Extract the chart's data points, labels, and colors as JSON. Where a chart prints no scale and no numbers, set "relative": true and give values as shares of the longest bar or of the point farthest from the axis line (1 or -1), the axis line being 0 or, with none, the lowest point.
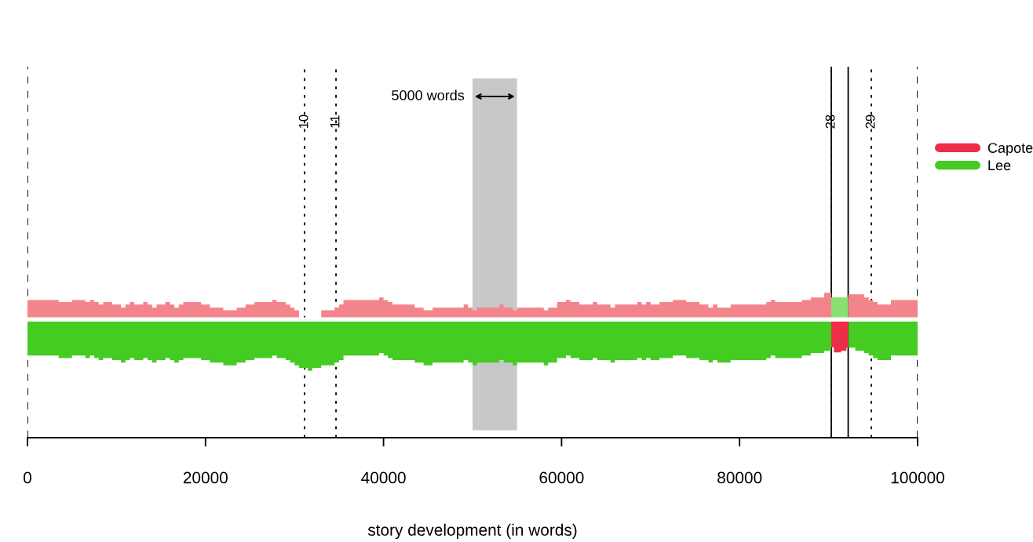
{
  "chart_data": {
    "type": "area",
    "relative": true,
    "xlabel": "story development (in words)",
    "xlim": [
      0,
      100000
    ],
    "xticks": [
      0,
      20000,
      40000,
      60000,
      80000,
      100000
    ],
    "tick_labels": "x",
    "legend": "right",
    "series": [
      {
        "color": "#f4848b",
        "x": [
          0,
          3500,
          3500,
          5000,
          5000,
          6500,
          6500,
          7000,
          7000,
          7500,
          7500,
          8000,
          8000,
          8500,
          8500,
          9500,
          9500,
          10500,
          10500,
          11000,
          11000,
          11500,
          11500,
          12000,
          12000,
          13000,
          13000,
          13500,
          13500,
          14000,
          14000,
          14500,
          14500,
          15500,
          15500,
          16000,
          16000,
          16500,
          16500,
          17000,
          17000,
          17500,
          17500,
          19500,
          19500,
          20500,
          20500,
          22000,
          22000,
          23500,
          23500,
          24500,
          24500,
          25500,
          25500,
          27500,
          27500,
          28000,
          28000,
          29000,
          29000,
          29500,
          29500,
          30000,
          30000,
          30500
        ],
        "values": [
          0.38,
          0.38,
          0.34,
          0.34,
          0.38,
          0.38,
          0.34,
          0.34,
          0.38,
          0.38,
          0.34,
          0.34,
          0.29,
          0.29,
          0.34,
          0.34,
          0.29,
          0.29,
          0.23,
          0.23,
          0.29,
          0.29,
          0.34,
          0.34,
          0.29,
          0.29,
          0.34,
          0.34,
          0.29,
          0.29,
          0.23,
          0.23,
          0.29,
          0.29,
          0.34,
          0.34,
          0.29,
          0.29,
          0.23,
          0.23,
          0.29,
          0.29,
          0.34,
          0.34,
          0.29,
          0.29,
          0.23,
          0.23,
          0.18,
          0.18,
          0.23,
          0.23,
          0.29,
          0.29,
          0.34,
          0.34,
          0.38,
          0.38,
          0.34,
          0.34,
          0.29,
          0.29,
          0.23,
          0.23,
          0.18,
          0.18
        ]
      },
      {
        "color": "#f4848b",
        "x": [
          33000,
          34500,
          34500,
          35000,
          35000,
          35500,
          35500,
          39500,
          39500,
          40000,
          40000,
          40500,
          40500,
          41000,
          41000,
          43500,
          43500,
          44500,
          44500,
          45500,
          45500,
          49000,
          49000,
          49500,
          49500,
          50000,
          50000,
          50500,
          50500,
          53000,
          53000,
          53500,
          53500,
          54500,
          54500,
          55000,
          55000,
          58000,
          58000,
          58500,
          58500,
          59500,
          59500,
          60500,
          60500,
          61000,
          61000,
          62000,
          62000,
          63500,
          63500,
          64000,
          64000,
          65500,
          65500,
          66000,
          66000,
          68500,
          68500,
          69000,
          69000,
          69500,
          69500,
          70000,
          70000,
          71000,
          71000,
          72500,
          72500,
          74000,
          74000,
          75500,
          75500,
          76500,
          76500,
          77000,
          77000,
          77500,
          77500,
          79000,
          79000,
          83000,
          83000,
          83500,
          83500,
          84000,
          84000,
          87000,
          87000,
          88000,
          88000,
          89500,
          89500,
          90300
        ],
        "values": [
          0.18,
          0.18,
          0.23,
          0.23,
          0.29,
          0.29,
          0.38,
          0.38,
          0.43,
          0.43,
          0.38,
          0.38,
          0.34,
          0.34,
          0.29,
          0.29,
          0.23,
          0.23,
          0.18,
          0.18,
          0.23,
          0.23,
          0.29,
          0.29,
          0.23,
          0.23,
          0.18,
          0.18,
          0.23,
          0.23,
          0.29,
          0.29,
          0.23,
          0.23,
          0.18,
          0.18,
          0.23,
          0.23,
          0.18,
          0.18,
          0.23,
          0.23,
          0.34,
          0.34,
          0.38,
          0.38,
          0.34,
          0.34,
          0.29,
          0.29,
          0.34,
          0.34,
          0.29,
          0.29,
          0.23,
          0.23,
          0.29,
          0.29,
          0.34,
          0.34,
          0.29,
          0.29,
          0.34,
          0.34,
          0.29,
          0.29,
          0.34,
          0.34,
          0.38,
          0.38,
          0.34,
          0.34,
          0.29,
          0.29,
          0.23,
          0.23,
          0.29,
          0.29,
          0.23,
          0.23,
          0.29,
          0.29,
          0.34,
          0.34,
          0.38,
          0.38,
          0.34,
          0.34,
          0.38,
          0.38,
          0.43,
          0.43,
          0.52,
          0.52
        ]
      },
      {
        "color": "#f4848b",
        "x": [
          92200,
          94000,
          94000,
          94500,
          94500,
          95000,
          95000,
          95500,
          95500,
          97000,
          97000,
          100000
        ],
        "values": [
          0.49,
          0.49,
          0.43,
          0.43,
          0.38,
          0.38,
          0.34,
          0.34,
          0.29,
          0.29,
          0.38,
          0.38
        ]
      },
      {
        "color": "#88e070",
        "x": [
          90300,
          92200
        ],
        "values": [
          0.43,
          0.43
        ]
      },
      {
        "name": "Lee",
        "color": "#44cc22",
        "x": [
          0,
          3500,
          3500,
          5000,
          5000,
          6500,
          6500,
          7000,
          7000,
          7500,
          7500,
          8000,
          8000,
          8500,
          8500,
          9500,
          9500,
          10500,
          10500,
          11000,
          11000,
          11500,
          11500,
          12000,
          12000,
          13000,
          13000,
          13500,
          13500,
          14000,
          14000,
          14500,
          14500,
          15500,
          15500,
          16000,
          16000,
          16500,
          16500,
          17000,
          17000,
          17500,
          17500,
          19500,
          19500,
          20500,
          20500,
          22000,
          22000,
          23500,
          23500,
          24500,
          24500,
          25500,
          25500,
          27500,
          27500,
          28000,
          28000,
          29000,
          29000,
          29500,
          29500,
          30000,
          30000,
          30500,
          30500,
          31500,
          31500,
          32000,
          32000,
          33000,
          33000,
          34500,
          34500,
          35000,
          35000,
          35500,
          35500,
          39500,
          39500,
          40000,
          40000,
          40500,
          40500,
          41000,
          41000,
          43500,
          43500,
          44500,
          44500,
          45500,
          45500,
          49000,
          49000,
          49500,
          49500,
          50000,
          50000,
          50500,
          50500,
          53000,
          53000,
          53500,
          53500,
          54500,
          54500,
          55000,
          55000,
          58000,
          58000,
          58500,
          58500,
          59500,
          59500,
          60500,
          60500,
          61000,
          61000,
          62000,
          62000,
          63500,
          63500,
          64000,
          64000,
          65500,
          65500,
          66000,
          66000,
          68500,
          68500,
          69000,
          69000,
          69500,
          69500,
          70000,
          70000,
          71000,
          71000,
          72500,
          72500,
          74000,
          74000,
          75500,
          75500,
          76500,
          76500,
          77000,
          77000,
          77500,
          77500,
          79000,
          79000,
          83000,
          83000,
          83500,
          83500,
          84000,
          84000,
          87000,
          87000,
          88000,
          88000,
          89500,
          89500,
          90300
        ],
        "values": [
          -0.7,
          -0.7,
          -0.75,
          -0.75,
          -0.7,
          -0.7,
          -0.75,
          -0.75,
          -0.7,
          -0.7,
          -0.75,
          -0.75,
          -0.79,
          -0.79,
          -0.75,
          -0.75,
          -0.79,
          -0.79,
          -0.84,
          -0.84,
          -0.79,
          -0.79,
          -0.75,
          -0.75,
          -0.79,
          -0.79,
          -0.75,
          -0.75,
          -0.79,
          -0.79,
          -0.84,
          -0.84,
          -0.79,
          -0.79,
          -0.75,
          -0.75,
          -0.79,
          -0.79,
          -0.84,
          -0.84,
          -0.79,
          -0.79,
          -0.75,
          -0.75,
          -0.79,
          -0.79,
          -0.84,
          -0.84,
          -0.89,
          -0.89,
          -0.84,
          -0.84,
          -0.79,
          -0.79,
          -0.75,
          -0.75,
          -0.7,
          -0.7,
          -0.75,
          -0.75,
          -0.79,
          -0.79,
          -0.84,
          -0.84,
          -0.89,
          -0.89,
          -0.94,
          -0.94,
          -1.0,
          -1.0,
          -0.94,
          -0.94,
          -0.89,
          -0.89,
          -0.84,
          -0.84,
          -0.79,
          -0.79,
          -0.7,
          -0.7,
          -0.65,
          -0.65,
          -0.7,
          -0.7,
          -0.75,
          -0.75,
          -0.79,
          -0.79,
          -0.84,
          -0.84,
          -0.89,
          -0.89,
          -0.84,
          -0.84,
          -0.79,
          -0.79,
          -0.84,
          -0.84,
          -0.89,
          -0.89,
          -0.84,
          -0.84,
          -0.79,
          -0.79,
          -0.84,
          -0.84,
          -0.89,
          -0.89,
          -0.84,
          -0.84,
          -0.89,
          -0.89,
          -0.84,
          -0.84,
          -0.75,
          -0.75,
          -0.7,
          -0.7,
          -0.75,
          -0.75,
          -0.79,
          -0.79,
          -0.75,
          -0.75,
          -0.79,
          -0.79,
          -0.84,
          -0.84,
          -0.79,
          -0.79,
          -0.75,
          -0.75,
          -0.79,
          -0.79,
          -0.75,
          -0.75,
          -0.79,
          -0.79,
          -0.75,
          -0.75,
          -0.7,
          -0.7,
          -0.75,
          -0.75,
          -0.79,
          -0.79,
          -0.84,
          -0.84,
          -0.79,
          -0.79,
          -0.84,
          -0.84,
          -0.79,
          -0.79,
          -0.75,
          -0.75,
          -0.7,
          -0.7,
          -0.75,
          -0.75,
          -0.7,
          -0.7,
          -0.65,
          -0.65,
          -0.61,
          -0.61
        ]
      },
      {
        "color": "#44cc22",
        "x": [
          92200,
          93000,
          93000,
          94000,
          94000,
          94500,
          94500,
          95000,
          95000,
          95500,
          95500,
          97000,
          97000,
          100000
        ],
        "values": [
          -0.55,
          -0.55,
          -0.61,
          -0.61,
          -0.65,
          -0.65,
          -0.7,
          -0.7,
          -0.75,
          -0.75,
          -0.79,
          -0.79,
          -0.7,
          -0.7
        ]
      },
      {
        "name": "Capote",
        "color": "#ee2d48",
        "x": [
          90300,
          90600,
          90600,
          91400,
          91400,
          92000,
          92000,
          92200
        ],
        "values": [
          -0.54,
          -0.54,
          -0.64,
          -0.64,
          -0.61,
          -0.61,
          -0.55,
          -0.55
        ]
      }
    ],
    "ref_lines": [
      {
        "axis": "x",
        "value": 0,
        "line_style": "dashed"
      },
      {
        "axis": "x",
        "value": 100000,
        "line_style": "dashed"
      },
      {
        "axis": "x",
        "value": 31130,
        "line_style": "dotted"
      },
      {
        "axis": "x",
        "value": 34660,
        "line_style": "dotted"
      },
      {
        "axis": "x",
        "value": 90300,
        "line_style": "dotted"
      },
      {
        "axis": "x",
        "value": 94800,
        "line_style": "dotted"
      },
      {
        "axis": "x",
        "value": 90300,
        "line_style": "solid"
      },
      {
        "axis": "x",
        "value": 92200,
        "line_style": "solid"
      }
    ],
    "bands": [
      {
        "axis": "x",
        "from": 50000,
        "to": 55000,
        "color": "#c8c8c8"
      }
    ],
    "annotations": [
      "5000 words",
      {
        "text": "10",
        "x": 31130
      },
      {
        "text": "11",
        "x": 34660
      },
      {
        "text": "28",
        "x": 90300
      },
      {
        "text": "29",
        "x": 94800
      }
    ]
  }
}
